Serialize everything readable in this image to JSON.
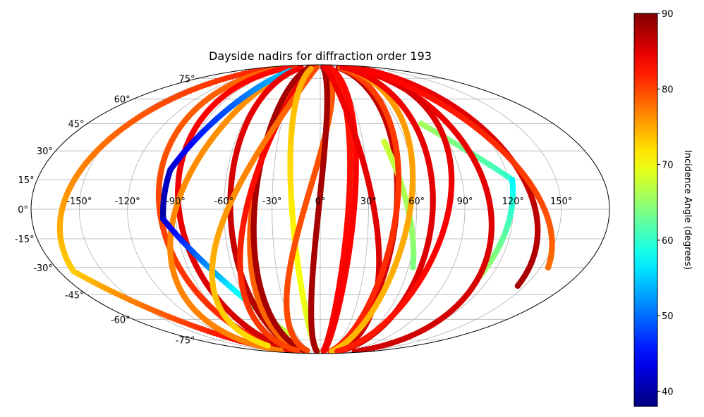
{
  "chart_data": {
    "type": "scatter",
    "projection": "mollweide",
    "title": "Dayside nadirs for diffraction order 193",
    "xlabel": "",
    "ylabel": "",
    "xlim": [
      -180,
      180
    ],
    "ylim": [
      -90,
      90
    ],
    "grid": true,
    "lon_ticks": [
      -150,
      -120,
      -90,
      -60,
      -30,
      0,
      30,
      60,
      90,
      120,
      150
    ],
    "lon_tick_labels": [
      "-150°",
      "-120°",
      "-90°",
      "-60°",
      "-30°",
      "0°",
      "30°",
      "60°",
      "90°",
      "120°",
      "150°"
    ],
    "lat_ticks": [
      -75,
      -60,
      -45,
      -30,
      -15,
      0,
      15,
      30,
      45,
      60,
      75
    ],
    "lat_tick_labels": [
      "-75°",
      "-60°",
      "-45°",
      "-30°",
      "-15°",
      "0°",
      "15°",
      "30°",
      "45°",
      "60°",
      "75°"
    ],
    "colorbar": {
      "label": "Incidence Angle (degrees)",
      "colormap": "jet",
      "range": [
        38,
        90
      ],
      "ticks": [
        40,
        50,
        60,
        70,
        80,
        90
      ],
      "tick_labels": [
        "40",
        "50",
        "60",
        "70",
        "80",
        "90"
      ]
    },
    "tracks": [
      {
        "lat0": 88,
        "lat1": -32,
        "lon0": -135,
        "lon1": -170,
        "inc0": 82,
        "inc1": 73
      },
      {
        "lat0": -32,
        "lat1": -82,
        "lon0": -170,
        "lon1": -115,
        "inc0": 73,
        "inc1": 85
      },
      {
        "lat0": 86,
        "lat1": -86,
        "lon0": -112,
        "lon1": -88,
        "inc0": 78,
        "inc1": 82
      },
      {
        "lat0": 86,
        "lat1": -86,
        "lon0": -100,
        "lon1": -76,
        "inc0": 83,
        "inc1": 86
      },
      {
        "lat0": 85,
        "lat1": -85,
        "lon0": -60,
        "lon1": -120,
        "inc0": 76,
        "inc1": 77
      },
      {
        "lat0": 82,
        "lat1": 20,
        "lon0": -65,
        "lon1": -97,
        "inc0": 55,
        "inc1": 42
      },
      {
        "lat0": 20,
        "lat1": -5,
        "lon0": -97,
        "lon1": -98,
        "inc0": 42,
        "inc1": 40
      },
      {
        "lat0": -5,
        "lat1": -70,
        "lon0": -98,
        "lon1": -40,
        "inc0": 42,
        "inc1": 68
      },
      {
        "lat0": 85,
        "lat1": -82,
        "lon0": -58,
        "lon1": -54,
        "inc0": 84,
        "inc1": 88
      },
      {
        "lat0": 86,
        "lat1": -86,
        "lon0": -30,
        "lon1": -55,
        "inc0": 80,
        "inc1": 78
      },
      {
        "lat0": 86,
        "lat1": -86,
        "lon0": -34,
        "lon1": -48,
        "inc0": 88,
        "inc1": 88
      },
      {
        "lat0": 85,
        "lat1": -85,
        "lon0": -22,
        "lon1": -70,
        "inc0": 85,
        "inc1": 80
      },
      {
        "lat0": 86,
        "lat1": -80,
        "lon0": -12,
        "lon1": -100,
        "inc0": 80,
        "inc1": 72
      },
      {
        "lat0": 84,
        "lat1": -86,
        "lon0": -25,
        "lon1": -10,
        "inc0": 75,
        "inc1": 68
      },
      {
        "lat0": 85,
        "lat1": -85,
        "lon0": 20,
        "lon1": -40,
        "inc0": 79,
        "inc1": 80
      },
      {
        "lat0": 86,
        "lat1": -86,
        "lon0": 10,
        "lon1": -12,
        "inc0": 88,
        "inc1": 88
      },
      {
        "lat0": 85,
        "lat1": -85,
        "lon0": 25,
        "lon1": 10,
        "inc0": 82,
        "inc1": 84
      },
      {
        "lat0": 86,
        "lat1": -86,
        "lon0": 30,
        "lon1": 12,
        "inc0": 83,
        "inc1": 84
      },
      {
        "lat0": 86,
        "lat1": -86,
        "lon0": 15,
        "lon1": 52,
        "inc0": 84,
        "inc1": 86
      },
      {
        "lat0": 85,
        "lat1": -85,
        "lon0": 55,
        "lon1": 40,
        "inc0": 87,
        "inc1": 85
      },
      {
        "lat0": 35,
        "lat1": -30,
        "lon0": 45,
        "lon1": 63,
        "inc0": 68,
        "inc1": 64
      },
      {
        "lat0": 85,
        "lat1": -86,
        "lon0": 60,
        "lon1": 35,
        "inc0": 80,
        "inc1": 82
      },
      {
        "lat0": 86,
        "lat1": -86,
        "lon0": 72,
        "lon1": 40,
        "inc0": 76,
        "inc1": 74
      },
      {
        "lat0": 86,
        "lat1": -86,
        "lon0": 75,
        "lon1": 65,
        "inc0": 84,
        "inc1": 86
      },
      {
        "lat0": 45,
        "lat1": 15,
        "lon0": 78,
        "lon1": 122,
        "inc0": 66,
        "inc1": 60
      },
      {
        "lat0": 15,
        "lat1": -35,
        "lon0": 122,
        "lon1": 112,
        "inc0": 57,
        "inc1": 66
      },
      {
        "lat0": 86,
        "lat1": -86,
        "lon0": 92,
        "lon1": 120,
        "inc0": 84,
        "inc1": 86
      },
      {
        "lat0": 86,
        "lat1": -86,
        "lon0": 100,
        "lon1": 60,
        "inc0": 86,
        "inc1": 82
      },
      {
        "lat0": 85,
        "lat1": -40,
        "lon0": 110,
        "lon1": 145,
        "inc0": 84,
        "inc1": 88
      },
      {
        "lat0": 86,
        "lat1": -30,
        "lon0": 95,
        "lon1": 155,
        "inc0": 84,
        "inc1": 78
      }
    ]
  }
}
